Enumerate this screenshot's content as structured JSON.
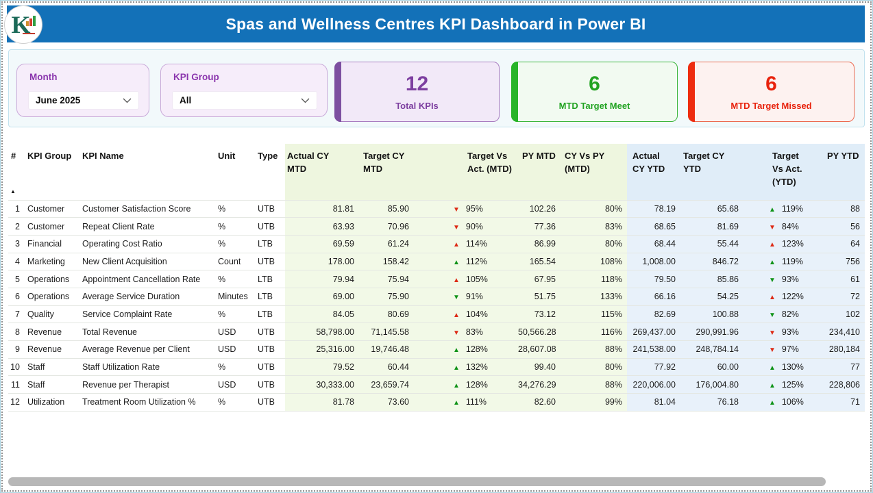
{
  "header": {
    "title": "Spas and Wellness Centres KPI Dashboard in Power BI",
    "logo_letter": "K"
  },
  "filters": {
    "month": {
      "label": "Month",
      "value": "June 2025"
    },
    "kpi_group": {
      "label": "KPI Group",
      "value": "All"
    }
  },
  "cards": [
    {
      "value": "12",
      "label": "Total KPIs",
      "accent": "#7d3fa0"
    },
    {
      "value": "6",
      "label": "MTD Target Meet",
      "accent": "#28b428"
    },
    {
      "value": "6",
      "label": "MTD Target Missed",
      "accent": "#ee2c10"
    }
  ],
  "table": {
    "sort_icon": "▲",
    "columns": [
      {
        "label": "#"
      },
      {
        "label": "KPI Group"
      },
      {
        "label": "KPI Name"
      },
      {
        "label": "Unit"
      },
      {
        "label": "Type"
      },
      {
        "label": "Actual CY MTD"
      },
      {
        "label": "Target CY MTD"
      },
      {
        "label": "Target Vs Act. (MTD)"
      },
      {
        "label": "PY MTD"
      },
      {
        "label": "CY Vs PY (MTD)"
      },
      {
        "label": "Actual CY YTD"
      },
      {
        "label": "Target CY YTD"
      },
      {
        "label": "Target Vs Act. (YTD)"
      },
      {
        "label": "PY YTD"
      }
    ],
    "rows": [
      {
        "n": "1",
        "group": "Customer",
        "name": "Customer Satisfaction Score",
        "unit": "%",
        "type": "UTB",
        "a_mtd": "81.81",
        "t_mtd": "85.90",
        "tva_mtd": {
          "d": "dn",
          "c": "r",
          "v": "95%"
        },
        "py_mtd": "102.26",
        "cy_py_mtd": "80%",
        "a_ytd": "78.19",
        "t_ytd": "65.68",
        "tva_ytd": {
          "d": "up",
          "c": "g",
          "v": "119%"
        },
        "py_ytd": "88"
      },
      {
        "n": "2",
        "group": "Customer",
        "name": "Repeat Client Rate",
        "unit": "%",
        "type": "UTB",
        "a_mtd": "63.93",
        "t_mtd": "70.96",
        "tva_mtd": {
          "d": "dn",
          "c": "r",
          "v": "90%"
        },
        "py_mtd": "77.36",
        "cy_py_mtd": "83%",
        "a_ytd": "68.65",
        "t_ytd": "81.69",
        "tva_ytd": {
          "d": "dn",
          "c": "r",
          "v": "84%"
        },
        "py_ytd": "56"
      },
      {
        "n": "3",
        "group": "Financial",
        "name": "Operating Cost Ratio",
        "unit": "%",
        "type": "LTB",
        "a_mtd": "69.59",
        "t_mtd": "61.24",
        "tva_mtd": {
          "d": "up",
          "c": "r",
          "v": "114%"
        },
        "py_mtd": "86.99",
        "cy_py_mtd": "80%",
        "a_ytd": "68.44",
        "t_ytd": "55.44",
        "tva_ytd": {
          "d": "up",
          "c": "r",
          "v": "123%"
        },
        "py_ytd": "64"
      },
      {
        "n": "4",
        "group": "Marketing",
        "name": "New Client Acquisition",
        "unit": "Count",
        "type": "UTB",
        "a_mtd": "178.00",
        "t_mtd": "158.42",
        "tva_mtd": {
          "d": "up",
          "c": "g",
          "v": "112%"
        },
        "py_mtd": "165.54",
        "cy_py_mtd": "108%",
        "a_ytd": "1,008.00",
        "t_ytd": "846.72",
        "tva_ytd": {
          "d": "up",
          "c": "g",
          "v": "119%"
        },
        "py_ytd": "756"
      },
      {
        "n": "5",
        "group": "Operations",
        "name": "Appointment Cancellation Rate",
        "unit": "%",
        "type": "LTB",
        "a_mtd": "79.94",
        "t_mtd": "75.94",
        "tva_mtd": {
          "d": "up",
          "c": "r",
          "v": "105%"
        },
        "py_mtd": "67.95",
        "cy_py_mtd": "118%",
        "a_ytd": "79.50",
        "t_ytd": "85.86",
        "tva_ytd": {
          "d": "dn",
          "c": "g",
          "v": "93%"
        },
        "py_ytd": "61"
      },
      {
        "n": "6",
        "group": "Operations",
        "name": "Average Service Duration",
        "unit": "Minutes",
        "type": "LTB",
        "a_mtd": "69.00",
        "t_mtd": "75.90",
        "tva_mtd": {
          "d": "dn",
          "c": "g",
          "v": "91%"
        },
        "py_mtd": "51.75",
        "cy_py_mtd": "133%",
        "a_ytd": "66.16",
        "t_ytd": "54.25",
        "tva_ytd": {
          "d": "up",
          "c": "r",
          "v": "122%"
        },
        "py_ytd": "72"
      },
      {
        "n": "7",
        "group": "Quality",
        "name": "Service Complaint Rate",
        "unit": "%",
        "type": "LTB",
        "a_mtd": "84.05",
        "t_mtd": "80.69",
        "tva_mtd": {
          "d": "up",
          "c": "r",
          "v": "104%"
        },
        "py_mtd": "73.12",
        "cy_py_mtd": "115%",
        "a_ytd": "82.69",
        "t_ytd": "100.88",
        "tva_ytd": {
          "d": "dn",
          "c": "g",
          "v": "82%"
        },
        "py_ytd": "102"
      },
      {
        "n": "8",
        "group": "Revenue",
        "name": "Total Revenue",
        "unit": "USD",
        "type": "UTB",
        "a_mtd": "58,798.00",
        "t_mtd": "71,145.58",
        "tva_mtd": {
          "d": "dn",
          "c": "r",
          "v": "83%"
        },
        "py_mtd": "50,566.28",
        "cy_py_mtd": "116%",
        "a_ytd": "269,437.00",
        "t_ytd": "290,991.96",
        "tva_ytd": {
          "d": "dn",
          "c": "r",
          "v": "93%"
        },
        "py_ytd": "234,410"
      },
      {
        "n": "9",
        "group": "Revenue",
        "name": "Average Revenue per Client",
        "unit": "USD",
        "type": "UTB",
        "a_mtd": "25,316.00",
        "t_mtd": "19,746.48",
        "tva_mtd": {
          "d": "up",
          "c": "g",
          "v": "128%"
        },
        "py_mtd": "28,607.08",
        "cy_py_mtd": "88%",
        "a_ytd": "241,538.00",
        "t_ytd": "248,784.14",
        "tva_ytd": {
          "d": "dn",
          "c": "r",
          "v": "97%"
        },
        "py_ytd": "280,184"
      },
      {
        "n": "10",
        "group": "Staff",
        "name": "Staff Utilization Rate",
        "unit": "%",
        "type": "UTB",
        "a_mtd": "79.52",
        "t_mtd": "60.44",
        "tva_mtd": {
          "d": "up",
          "c": "g",
          "v": "132%"
        },
        "py_mtd": "99.40",
        "cy_py_mtd": "80%",
        "a_ytd": "77.92",
        "t_ytd": "60.00",
        "tva_ytd": {
          "d": "up",
          "c": "g",
          "v": "130%"
        },
        "py_ytd": "77"
      },
      {
        "n": "11",
        "group": "Staff",
        "name": "Revenue per Therapist",
        "unit": "USD",
        "type": "UTB",
        "a_mtd": "30,333.00",
        "t_mtd": "23,659.74",
        "tva_mtd": {
          "d": "up",
          "c": "g",
          "v": "128%"
        },
        "py_mtd": "34,276.29",
        "cy_py_mtd": "88%",
        "a_ytd": "220,006.00",
        "t_ytd": "176,004.80",
        "tva_ytd": {
          "d": "up",
          "c": "g",
          "v": "125%"
        },
        "py_ytd": "228,806"
      },
      {
        "n": "12",
        "group": "Utilization",
        "name": "Treatment Room Utilization %",
        "unit": "%",
        "type": "UTB",
        "a_mtd": "81.78",
        "t_mtd": "73.60",
        "tva_mtd": {
          "d": "up",
          "c": "g",
          "v": "111%"
        },
        "py_mtd": "82.60",
        "cy_py_mtd": "99%",
        "a_ytd": "81.04",
        "t_ytd": "76.18",
        "tva_ytd": {
          "d": "up",
          "c": "g",
          "v": "106%"
        },
        "py_ytd": "71"
      }
    ]
  },
  "colors": {
    "header_bg": "#1371b8",
    "mtd_section_bg": "#f2f9e7",
    "ytd_section_bg": "#e8f1fa",
    "arrow_good": "#0f9318",
    "arrow_bad": "#dd2b16",
    "total_kpis_accent": "#7d3fa0",
    "target_meet_accent": "#28b428",
    "target_missed_accent": "#ee2c10"
  }
}
